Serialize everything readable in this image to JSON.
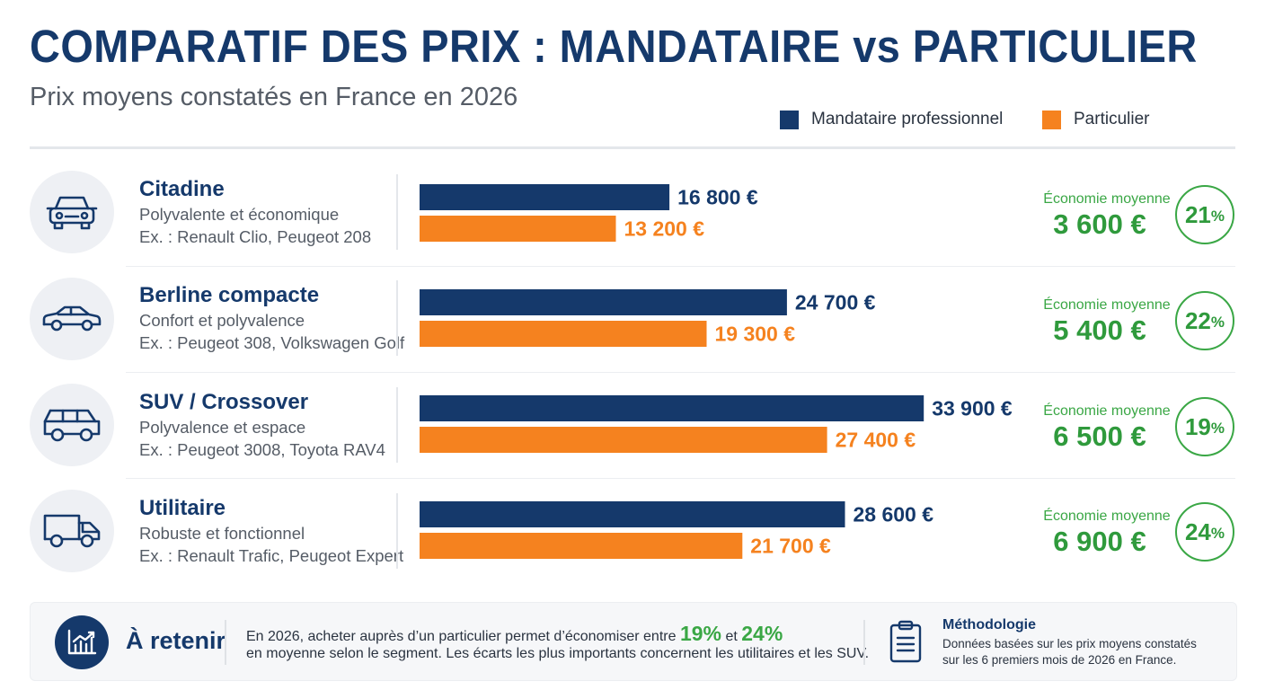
{
  "header": {
    "title": "COMPARATIF DES PRIX : MANDATAIRE vs PARTICULIER",
    "subtitle": "Prix moyens constatés en France en 2026"
  },
  "colors": {
    "mandataire": "#15396b",
    "particulier": "#f5821f",
    "savings": "#3aa745"
  },
  "chart_data": {
    "type": "bar",
    "orientation": "horizontal",
    "unit": "€",
    "categories": [
      "Citadine",
      "Berline compacte",
      "SUV / Crossover",
      "Utilitaire"
    ],
    "series": [
      {
        "name": "Mandataire professionnel",
        "color": "#15396b",
        "values": [
          16800,
          24700,
          33900,
          28600
        ],
        "labels": [
          "16 800 €",
          "24 700 €",
          "33 900 €",
          "28 600 €"
        ]
      },
      {
        "name": "Particulier",
        "color": "#f5821f",
        "values": [
          13200,
          19300,
          27400,
          21700
        ],
        "labels": [
          "13 200 €",
          "19 300 €",
          "27 400 €",
          "21 700 €"
        ]
      }
    ],
    "xlim": [
      0,
      36000
    ],
    "grid": false,
    "legend_position": "top-right"
  },
  "segments": [
    {
      "name": "Citadine",
      "desc": "Polyvalente et économique",
      "examples": "Ex. : Renault Clio, Peugeot 208",
      "icon": "hatchback-icon",
      "eco_label": "Économie moyenne",
      "eco_value": "3 600 €",
      "pct": "21",
      "pct_sign": "%"
    },
    {
      "name": "Berline compacte",
      "desc": "Confort et polyvalence",
      "examples": "Ex. : Peugeot 308, Volkswagen Golf",
      "icon": "sedan-icon",
      "eco_label": "Économie moyenne",
      "eco_value": "5 400 €",
      "pct": "22",
      "pct_sign": "%"
    },
    {
      "name": "SUV / Crossover",
      "desc": "Polyvalence et espace",
      "examples": "Ex. : Peugeot 3008, Toyota RAV4",
      "icon": "suv-icon",
      "eco_label": "Économie moyenne",
      "eco_value": "6 500 €",
      "pct": "19",
      "pct_sign": "%"
    },
    {
      "name": "Utilitaire",
      "desc": "Robuste et fonctionnel",
      "examples": "Ex. : Renault Trafic, Peugeot Expert",
      "icon": "van-icon",
      "eco_label": "Économie moyenne",
      "eco_value": "6 900 €",
      "pct": "24",
      "pct_sign": "%"
    }
  ],
  "footer": {
    "title": "À retenir",
    "icon": "chart-trend-icon",
    "line1_a": "En 2026, acheter auprès d’un particulier permet d’économiser entre",
    "min_pct": "19%",
    "and": "et",
    "max_pct": "24%",
    "line2": "en moyenne selon le segment. Les écarts les plus importants concernent les utilitaires et les SUV.",
    "method_icon": "clipboard-icon",
    "method_title": "Méthodologie",
    "method_line1": "Données basées sur les prix moyens constatés",
    "method_line2": "sur les 6 premiers mois de 2026 en France."
  }
}
